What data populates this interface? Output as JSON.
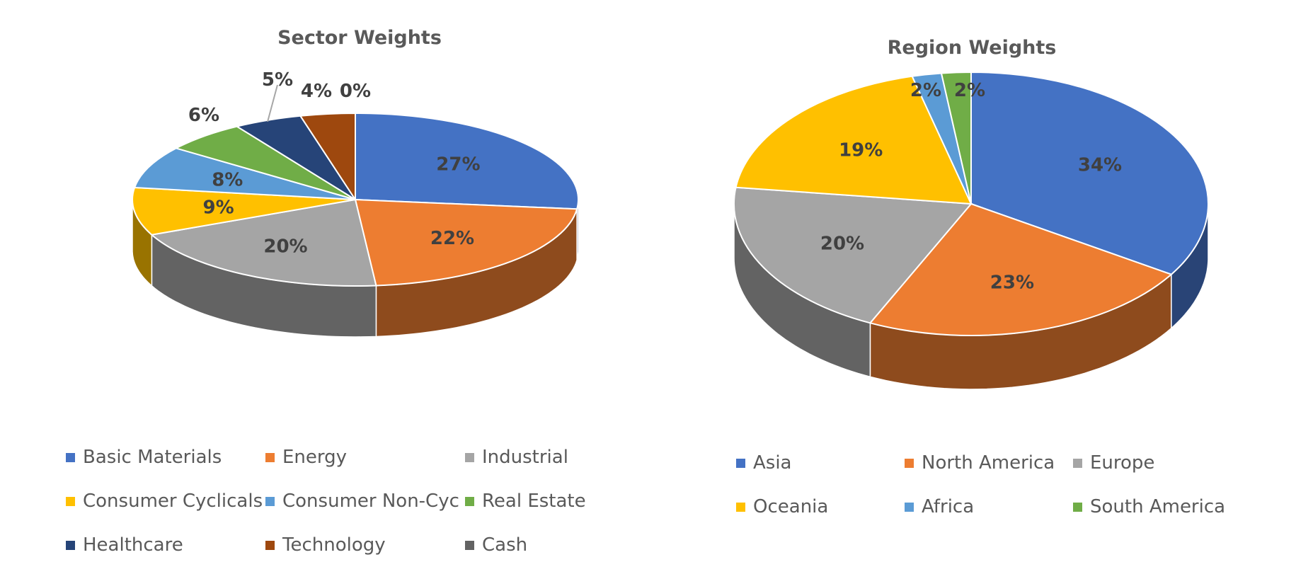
{
  "chart_data": [
    {
      "type": "pie",
      "title": "Sector Weights",
      "categories": [
        "Basic Materials",
        "Energy",
        "Industrial",
        "Consumer Cyclicals",
        "Consumer Non-Cyc",
        "Real Estate",
        "Healthcare",
        "Technology",
        "Cash"
      ],
      "values": [
        27,
        22,
        20,
        9,
        8,
        6,
        5,
        4,
        0
      ],
      "data_labels": [
        "27%",
        "22%",
        "20%",
        "9%",
        "8%",
        "6%",
        "5%",
        "4%",
        "0%"
      ],
      "colors": [
        "#4472C4",
        "#ED7D31",
        "#A5A5A5",
        "#FFC000",
        "#5B9BD5",
        "#70AD47",
        "#264478",
        "#9E480E",
        "#636363"
      ],
      "legend_position": "bottom",
      "style": "3d"
    },
    {
      "type": "pie",
      "title": "Region Weights",
      "categories": [
        "Asia",
        "North America",
        "Europe",
        "Oceania",
        "Africa",
        "South America"
      ],
      "values": [
        34,
        23,
        20,
        19,
        2,
        2
      ],
      "data_labels": [
        "34%",
        "23%",
        "20%",
        "19%",
        "2%",
        "2%"
      ],
      "colors": [
        "#4472C4",
        "#ED7D31",
        "#A5A5A5",
        "#FFC000",
        "#5B9BD5",
        "#70AD47"
      ],
      "legend_position": "bottom",
      "style": "3d"
    }
  ]
}
